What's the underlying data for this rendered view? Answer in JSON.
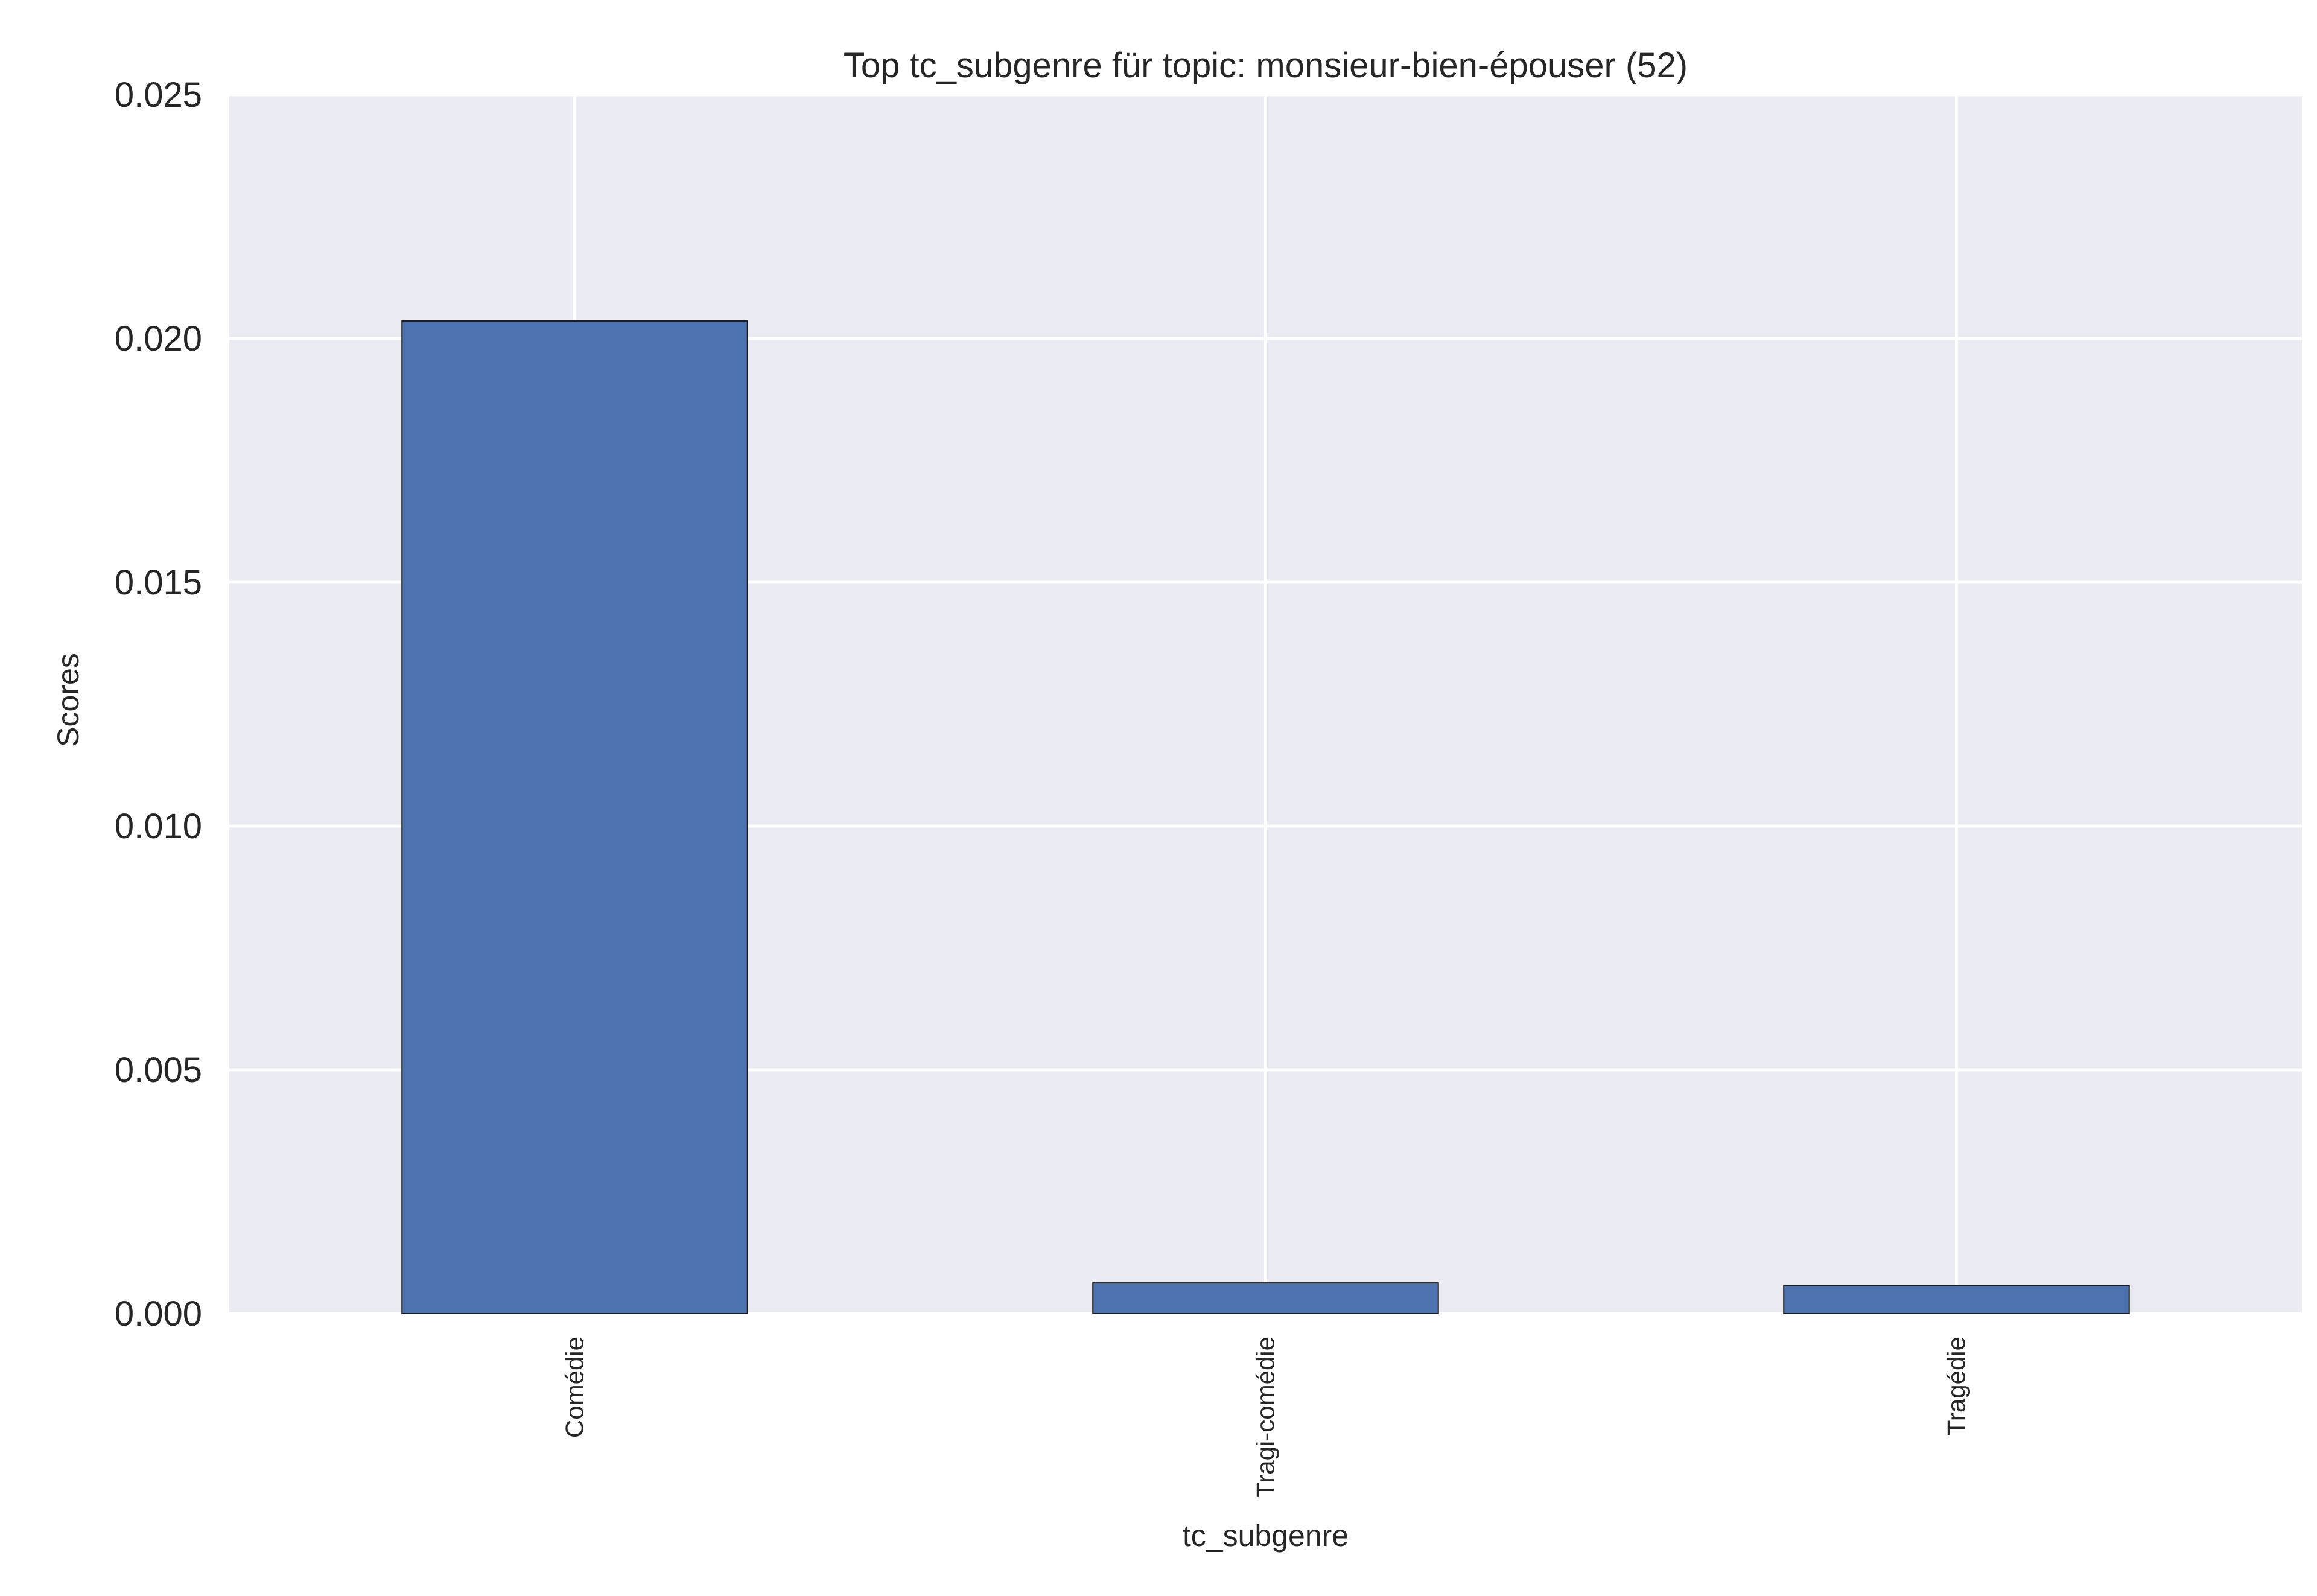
{
  "chart_data": {
    "type": "bar",
    "title": "Top tc_subgenre für topic: monsieur-bien-épouser (52)",
    "xlabel": "tc_subgenre",
    "ylabel": "Scores",
    "categories": [
      "Comédie",
      "Tragi-comédie",
      "Tragédie"
    ],
    "values": [
      0.02036,
      0.00063,
      0.00058
    ],
    "ylim": [
      0,
      0.025
    ],
    "yticks": [
      "0.000",
      "0.005",
      "0.010",
      "0.015",
      "0.020",
      "0.025"
    ],
    "grid": true,
    "legend": "none",
    "colors": {
      "bar": "#4c72b0",
      "bar_edge": "#1a1a1a",
      "plot_background": "#eaeaf2",
      "grid": "#ffffff"
    }
  }
}
